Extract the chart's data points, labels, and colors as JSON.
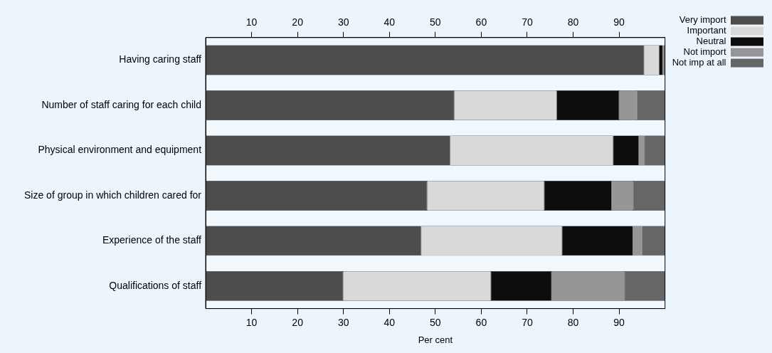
{
  "chart_data": {
    "type": "bar",
    "orientation": "horizontal",
    "stacked": true,
    "xlabel": "Per cent",
    "categories": [
      "Having caring staff",
      "Number of staff caring for each child",
      "Physical environment and equipment",
      "Size of group in which children cared for",
      "Experience of the staff",
      "Qualifications of staff"
    ],
    "series": [
      {
        "name": "Very import",
        "color": "#4d4d4d",
        "values": [
          95.4,
          54.1,
          53.2,
          48.2,
          46.9,
          29.9
        ]
      },
      {
        "name": "Important",
        "color": "#d9d9d9",
        "values": [
          3.3,
          22.3,
          35.5,
          25.5,
          30.7,
          32.2
        ]
      },
      {
        "name": "Neutral",
        "color": "#0d0d0d",
        "values": [
          0.8,
          13.6,
          5.6,
          14.7,
          15.4,
          13.2
        ]
      },
      {
        "name": "Not import",
        "color": "#969696",
        "values": [
          0.2,
          3.9,
          1.2,
          4.7,
          2.0,
          15.9
        ]
      },
      {
        "name": "Not imp at all",
        "color": "#666666",
        "values": [
          0.3,
          6.1,
          4.5,
          6.9,
          5.0,
          8.8
        ]
      }
    ],
    "xlim": [
      0,
      100
    ],
    "xticks": [
      10,
      20,
      30,
      40,
      50,
      60,
      70,
      80,
      90
    ],
    "x2lim": [
      0,
      100
    ],
    "x2ticks": [
      10,
      20,
      30,
      40,
      50,
      60,
      70,
      80,
      90
    ],
    "grid": false,
    "legend": "top right"
  }
}
